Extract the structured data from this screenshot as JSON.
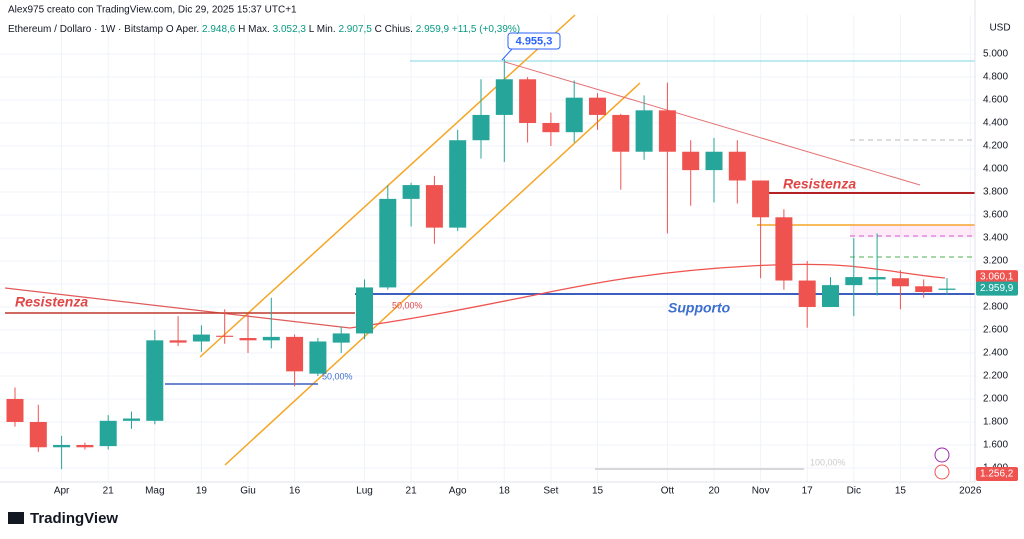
{
  "header": {
    "author": "Alex975 creato con TradingView.com, Dic 29, 2025 15:37 UTC+1",
    "logo": "TradingView"
  },
  "chart_data": {
    "type": "candlestick",
    "title": "Ethereum / Dollaro · 1W · Bitstamp",
    "ohlc_labels": [
      "O",
      "Aper.",
      "H",
      "Max.",
      "L",
      "Min.",
      "C",
      "Chius."
    ],
    "ohlc_values": [
      "2.948,6",
      "3.052,3",
      "2.907,5",
      "2.959,9"
    ],
    "change": "+11,5 (+0,39%)",
    "y_axis_label": "USD",
    "categories": [
      null,
      null,
      "Apr",
      null,
      "21",
      null,
      "Mag",
      null,
      "19",
      null,
      "Giu",
      null,
      "16",
      null,
      null,
      "Lug",
      null,
      "21",
      null,
      "Ago",
      null,
      "18",
      null,
      "Set",
      null,
      "15",
      null,
      null,
      "Ott",
      null,
      "20",
      null,
      "Nov",
      null,
      "17",
      null,
      "Dic",
      null,
      "15",
      null,
      null,
      "2026"
    ],
    "open": [
      2000,
      1800,
      1580,
      1600,
      1590,
      1810,
      1810,
      2510,
      2500,
      2550,
      2530,
      2510,
      2540,
      2220,
      2490,
      2570,
      2970,
      3740,
      3860,
      3490,
      4250,
      4470,
      4780,
      4400,
      4320,
      4620,
      4470,
      4150,
      4510,
      4150,
      3990,
      4150,
      3900,
      3580,
      3030,
      2800,
      2990,
      3040,
      3050,
      2980,
      2948.6,
      null
    ],
    "high": [
      2100,
      1950,
      1680,
      1620,
      1860,
      1890,
      2600,
      2720,
      2640,
      2780,
      2740,
      2880,
      2560,
      2530,
      2630,
      3040,
      3860,
      3880,
      3940,
      4340,
      4780,
      4955.3,
      4800,
      4490,
      4770,
      4660,
      4480,
      4640,
      4750,
      4250,
      4270,
      4250,
      3900,
      3650,
      3200,
      3060,
      3400,
      3440,
      3120,
      3040,
      3052.3,
      null
    ],
    "low": [
      1760,
      1540,
      1390,
      1560,
      1560,
      1740,
      1780,
      2460,
      2410,
      2480,
      2400,
      2440,
      2110,
      2200,
      2400,
      2520,
      2950,
      3500,
      3350,
      3460,
      4090,
      4060,
      4230,
      4200,
      4230,
      4340,
      3820,
      4080,
      3440,
      3680,
      3710,
      3700,
      3050,
      2950,
      2620,
      2800,
      2720,
      2900,
      2780,
      2880,
      2907.5,
      null
    ],
    "close": [
      1800,
      1580,
      1600,
      1580,
      1810,
      1830,
      2510,
      2490,
      2560,
      2540,
      2510,
      2540,
      2240,
      2500,
      2570,
      2970,
      3740,
      3860,
      3490,
      4250,
      4470,
      4780,
      4400,
      4320,
      4620,
      4470,
      4150,
      4510,
      4150,
      3990,
      4150,
      3900,
      3580,
      3030,
      2800,
      2990,
      3060,
      3060,
      2980,
      2930,
      2959.9,
      null
    ],
    "up_color": "#26a69a",
    "down_color": "#ef5350",
    "ylim": [
      1278,
      5339
    ],
    "yticks": [
      {
        "value": 1400,
        "label": "1.400"
      },
      {
        "value": 1600,
        "label": "1.600"
      },
      {
        "value": 1800,
        "label": "1.800"
      },
      {
        "value": 2000,
        "label": "2.000"
      },
      {
        "value": 2200,
        "label": "2.200"
      },
      {
        "value": 2400,
        "label": "2.400"
      },
      {
        "value": 2600,
        "label": "2.600"
      },
      {
        "value": 2800,
        "label": "2.800"
      },
      {
        "value": 3000,
        "label": "3.000"
      },
      {
        "value": 3200,
        "label": "3.200"
      },
      {
        "value": 3400,
        "label": "3.400"
      },
      {
        "value": 3600,
        "label": "3.600"
      },
      {
        "value": 3800,
        "label": "3.800"
      },
      {
        "value": 4000,
        "label": "4.000"
      },
      {
        "value": 4200,
        "label": "4.200"
      },
      {
        "value": 4400,
        "label": "4.400"
      },
      {
        "value": 4600,
        "label": "4.600"
      },
      {
        "value": 4800,
        "label": "4.800"
      },
      {
        "value": 5000,
        "label": "5.000"
      }
    ],
    "grid": true,
    "price_tags": [
      {
        "value": 3060.1,
        "label": "3.060,1",
        "color": "#ef5350"
      },
      {
        "value": 2959.9,
        "label": "2.959,9",
        "color": "#26a69a"
      },
      {
        "value": 1256.2,
        "label": "1.256,2",
        "color": "#ef5350"
      }
    ],
    "annotations": [
      "Resistenza",
      "Resistenza",
      "Supporto",
      "50,00%",
      "50,00%",
      "100,00%",
      "4.955,3"
    ]
  }
}
